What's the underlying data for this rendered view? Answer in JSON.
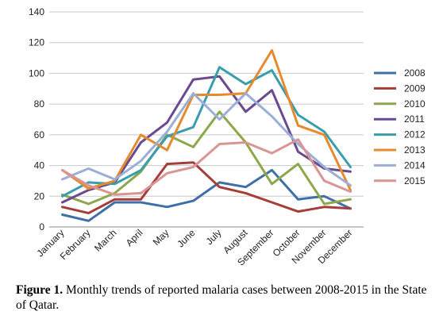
{
  "chart_data": {
    "type": "line",
    "categories": [
      "January",
      "February",
      "March",
      "April",
      "May",
      "June",
      "July",
      "August",
      "September",
      "October",
      "November",
      "December"
    ],
    "ylim": [
      0,
      140
    ],
    "yticks": [
      0,
      20,
      40,
      60,
      80,
      100,
      120,
      140
    ],
    "grid": "horizontal",
    "legend_position": "right",
    "series": [
      {
        "name": "2008",
        "color": "#3E6FA8",
        "values": [
          8,
          4,
          16,
          16,
          13,
          17,
          29,
          26,
          37,
          18,
          20,
          12
        ]
      },
      {
        "name": "2009",
        "color": "#A53E39",
        "values": [
          13,
          9,
          18,
          18,
          41,
          42,
          26,
          22,
          16,
          10,
          13,
          12
        ]
      },
      {
        "name": "2010",
        "color": "#8CA84A",
        "values": [
          21,
          15,
          22,
          36,
          60,
          52,
          75,
          55,
          28,
          41,
          15,
          18
        ]
      },
      {
        "name": "2011",
        "color": "#6A4A8E",
        "values": [
          16,
          24,
          29,
          55,
          68,
          96,
          98,
          75,
          89,
          49,
          38,
          36
        ]
      },
      {
        "name": "2012",
        "color": "#3A9DAE",
        "values": [
          20,
          29,
          28,
          37,
          59,
          65,
          104,
          93,
          102,
          73,
          62,
          39
        ]
      },
      {
        "name": "2013",
        "color": "#E68A2E",
        "values": [
          37,
          25,
          30,
          60,
          50,
          86,
          86,
          87,
          115,
          66,
          60,
          24
        ]
      },
      {
        "name": "2014",
        "color": "#9AAED8",
        "values": [
          31,
          38,
          31,
          43,
          62,
          87,
          70,
          87,
          72,
          54,
          39,
          27
        ]
      },
      {
        "name": "2015",
        "color": "#D99593",
        "values": [
          37,
          27,
          21,
          22,
          35,
          39,
          54,
          55,
          48,
          57,
          30,
          23
        ]
      }
    ]
  },
  "caption": {
    "label": "Figure 1.",
    "text": "Monthly trends of reported malaria cases between 2008-2015 in the State of Qatar."
  }
}
